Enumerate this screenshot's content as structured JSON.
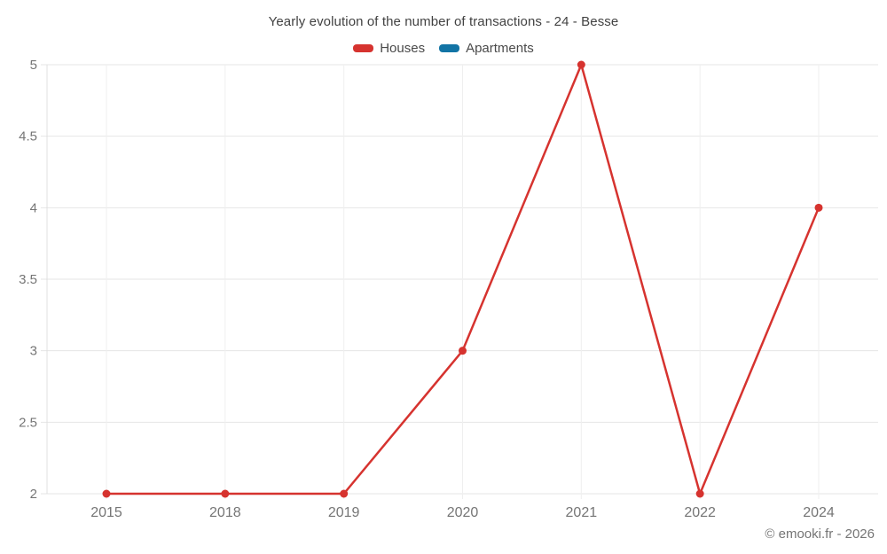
{
  "title": "Yearly evolution of the number of transactions - 24 - Besse",
  "footer": {
    "text": "© emooki.fr - 2026"
  },
  "colors": {
    "houses": "#d6332f",
    "apartments": "#1274a5",
    "grid_horizontal": "#e6e6e6",
    "grid_vertical": "#efefef",
    "axis_line": "#e0e0e0",
    "tick_label": "#757575",
    "title_text": "#424242"
  },
  "chart_data": {
    "type": "line",
    "title": "Yearly evolution of the number of transactions - 24 - Besse",
    "categories": [
      "2015",
      "2018",
      "2019",
      "2020",
      "2021",
      "2022",
      "2024"
    ],
    "series": [
      {
        "name": "Houses",
        "color": "#d6332f",
        "values": [
          2,
          2,
          2,
          3,
          5,
          2,
          4
        ]
      },
      {
        "name": "Apartments",
        "color": "#1274a5",
        "values": []
      }
    ],
    "xlabel": "",
    "ylabel": "",
    "ylim": [
      2,
      5
    ],
    "yticks": [
      2,
      2.5,
      3,
      3.5,
      4,
      4.5,
      5
    ],
    "ytick_labels": [
      "2",
      "2.5",
      "3",
      "3.5",
      "4",
      "4.5",
      "5"
    ],
    "grid": true,
    "legend_position": "top",
    "marker": "circle"
  }
}
